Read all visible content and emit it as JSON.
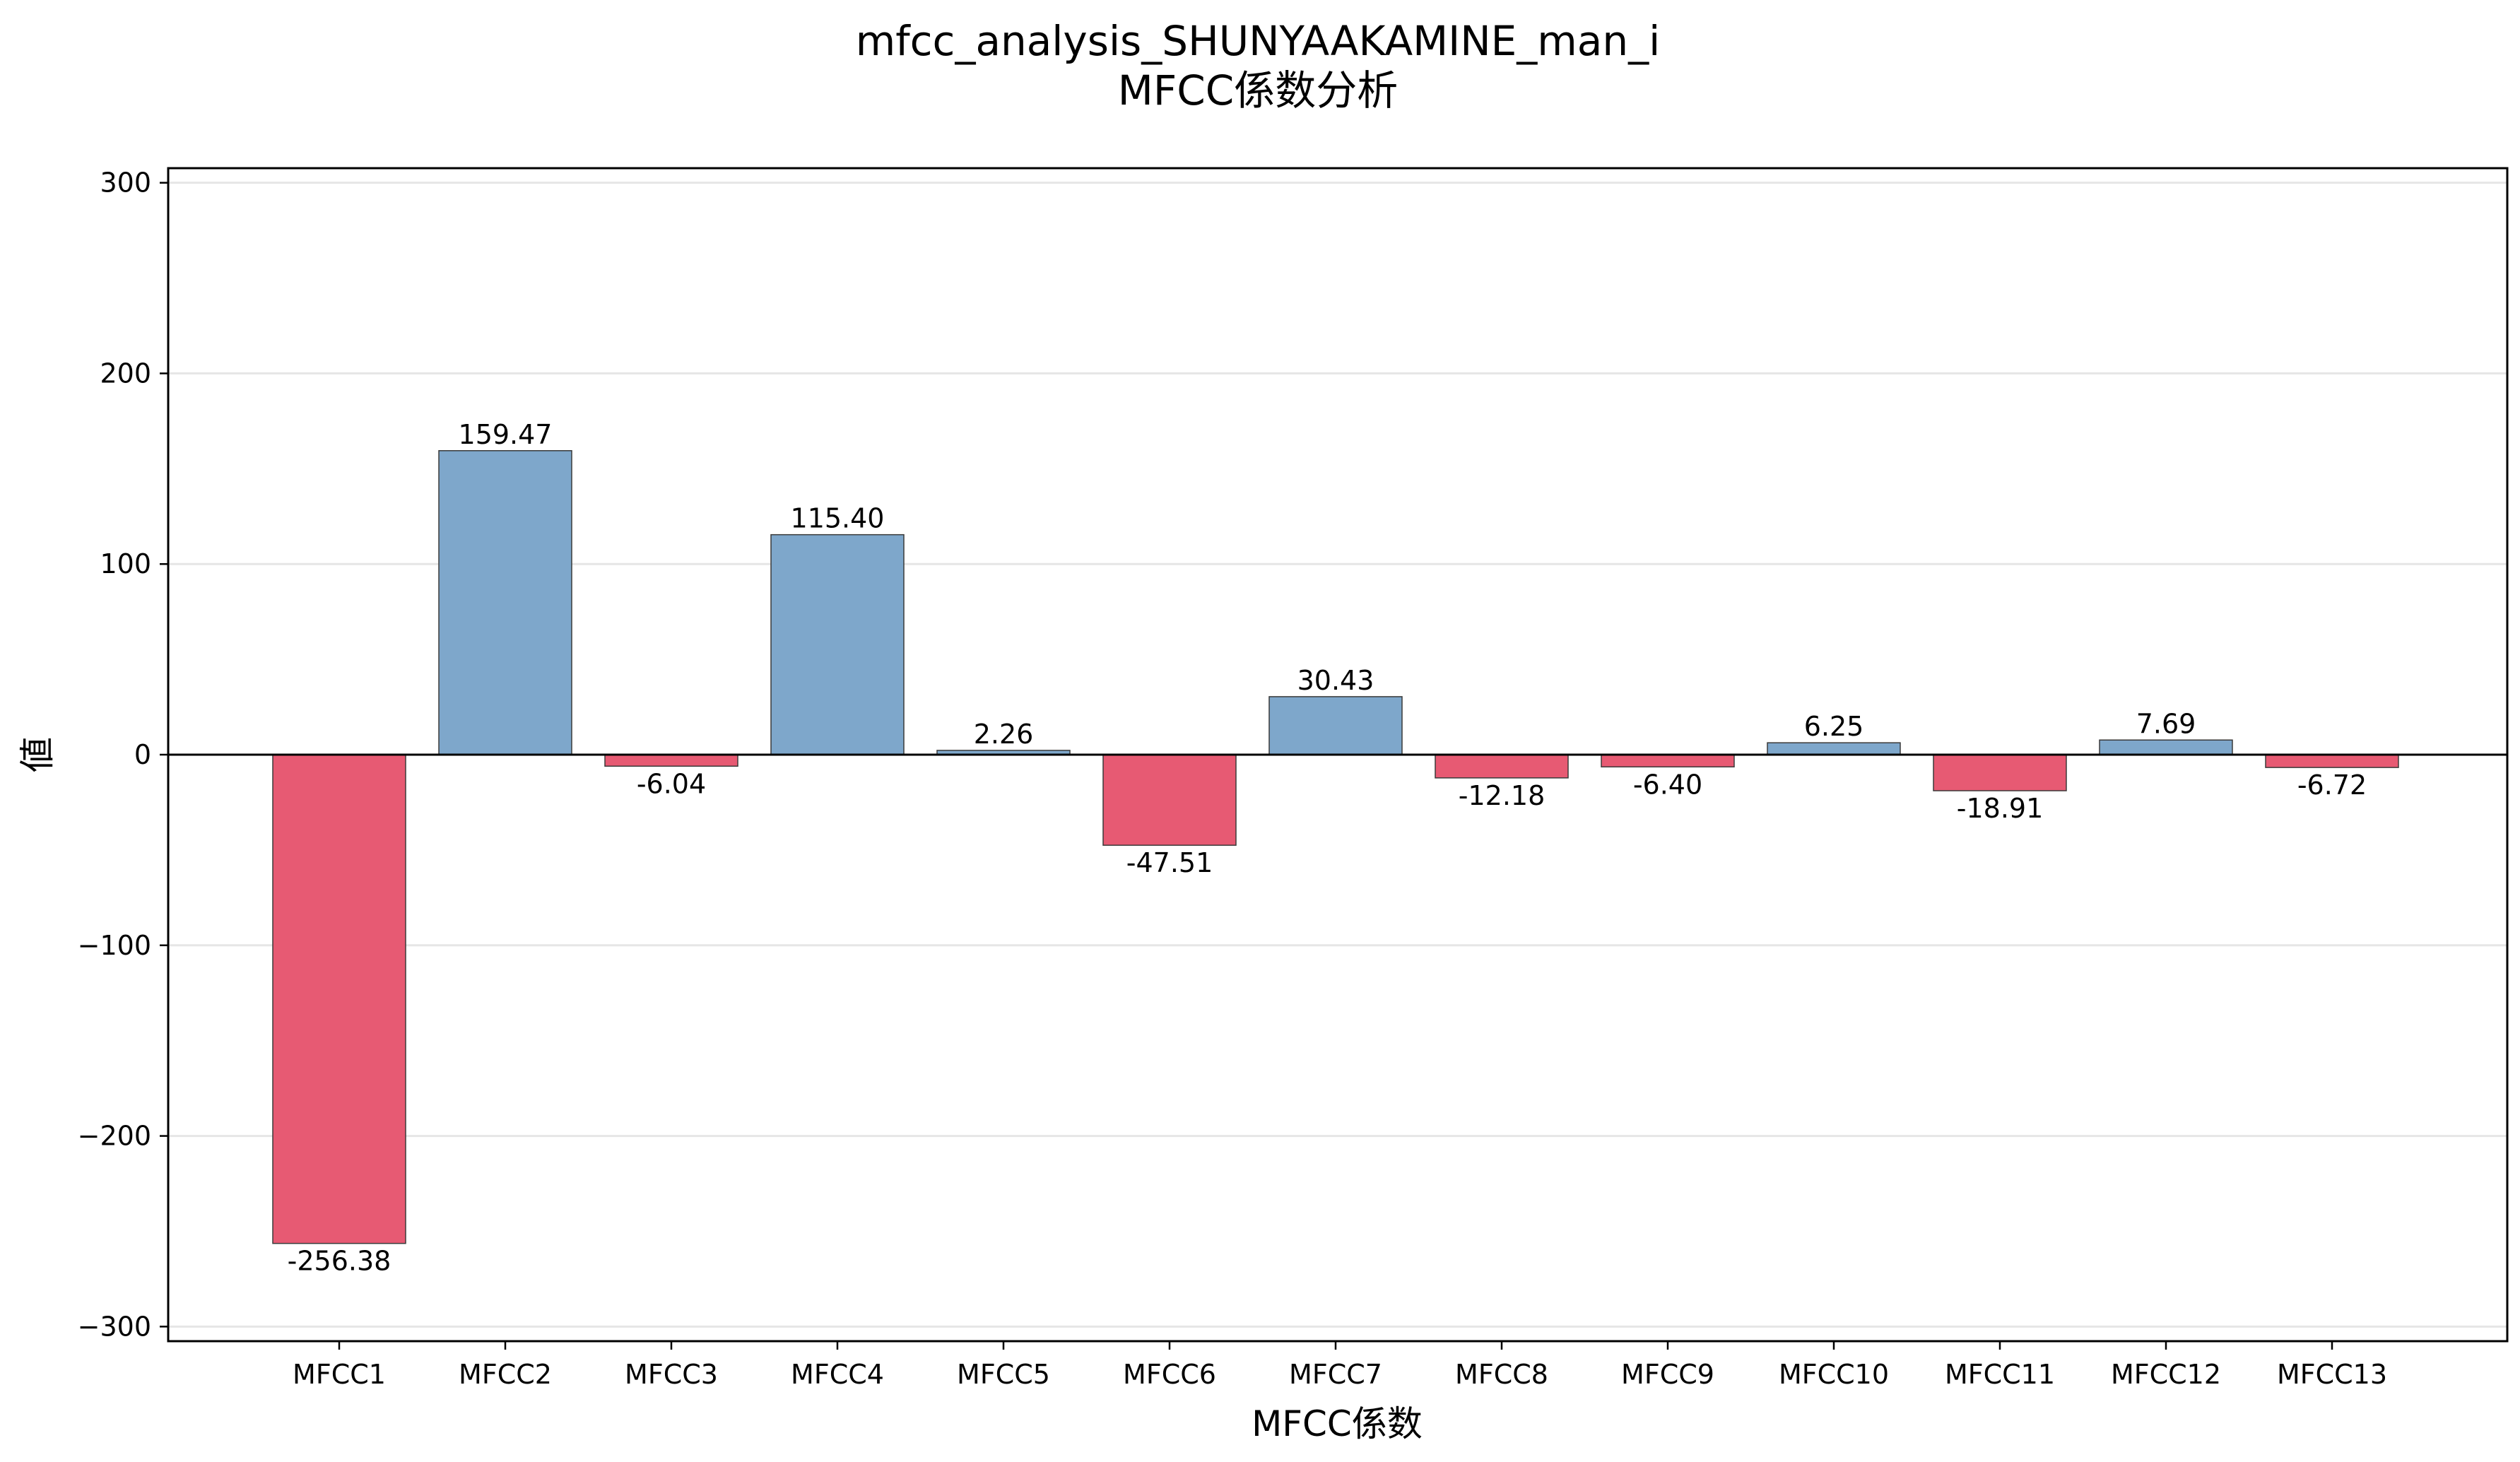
{
  "chart_data": {
    "type": "bar",
    "title": "mfcc_analysis_SHUNYAAKAMINE_man_i",
    "subtitle": "MFCC係数分析",
    "xlabel": "MFCC係数",
    "ylabel": "値",
    "categories": [
      "MFCC1",
      "MFCC2",
      "MFCC3",
      "MFCC4",
      "MFCC5",
      "MFCC6",
      "MFCC7",
      "MFCC8",
      "MFCC9",
      "MFCC10",
      "MFCC11",
      "MFCC12",
      "MFCC13"
    ],
    "values": [
      -256.38,
      159.47,
      -6.04,
      115.4,
      2.26,
      -47.51,
      30.43,
      -12.18,
      -6.4,
      6.25,
      -18.91,
      7.69,
      -6.72
    ],
    "value_labels": [
      "-256.38",
      "159.47",
      "-6.04",
      "115.40",
      "2.26",
      "-47.51",
      "30.43",
      "-12.18",
      "-6.40",
      "6.25",
      "-18.91",
      "7.69",
      "-6.72"
    ],
    "ylim": [
      -307.65,
      307.65
    ],
    "yticks": [
      -300,
      -200,
      -100,
      0,
      100,
      200,
      300
    ],
    "ytick_labels": [
      "−300",
      "−200",
      "−100",
      "0",
      "100",
      "200",
      "300"
    ],
    "grid": "y",
    "legend": "none",
    "colors": {
      "positive": "#7ea7cb",
      "negative": "#e75a73",
      "bar_edge": "#3a3a3a",
      "zero_line": "#000000",
      "grid": "#e6e6e6",
      "frame": "#000000"
    }
  }
}
